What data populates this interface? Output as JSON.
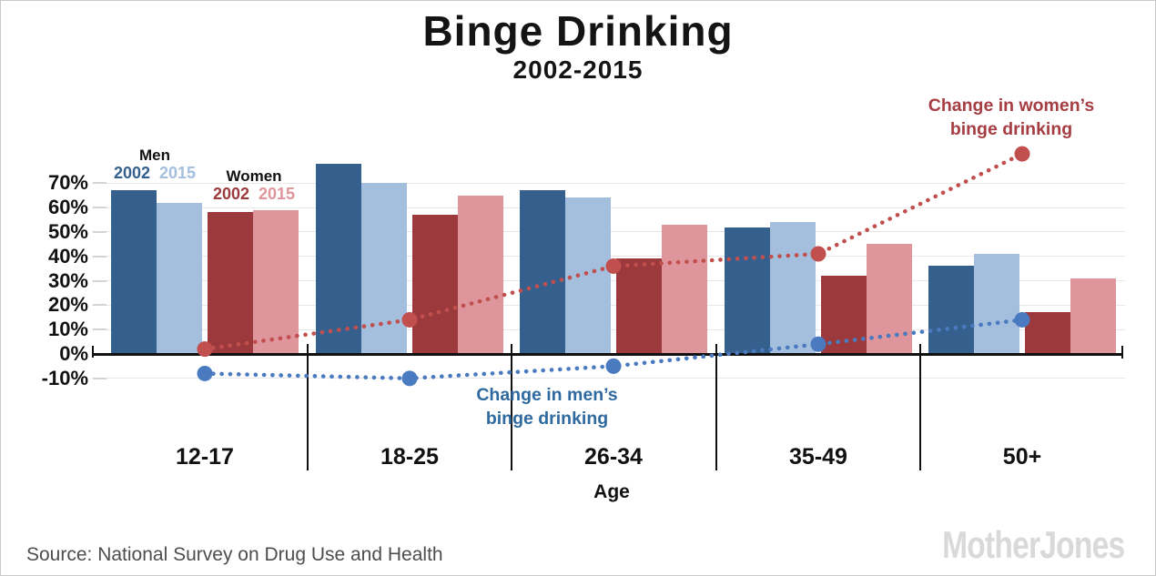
{
  "header": {
    "title": "Binge Drinking",
    "subtitle": "2002-2015"
  },
  "legend": {
    "men_label": "Men",
    "men_2002": "2002",
    "men_2015": "2015",
    "women_label": "Women",
    "women_2002": "2002",
    "women_2015": "2015"
  },
  "annotations": {
    "women_line1": "Change in women’s",
    "women_line2": "binge drinking",
    "men_line1": "Change in men’s",
    "men_line2": "binge drinking"
  },
  "axis": {
    "x_label": "Age"
  },
  "footer": {
    "source": "Source: National Survey on Drug Use and Health",
    "logo": "MotherJones"
  },
  "colors": {
    "men_2002_bar": "#35608d",
    "men_2015_bar": "#a3bfdd",
    "women_2002_bar": "#9c393c",
    "women_2015_bar": "#de959b",
    "men_change_line": "#4a7abf",
    "women_change_line": "#c14f4e",
    "men_annotation_text": "#2e699f",
    "women_annotation_text": "#a63d42",
    "axis_line": "#111111",
    "gridline": "#e7e7e7",
    "tick_dash": "#d4d4d4",
    "source_text": "#4d4d4d",
    "logo_text": "#d9d9d9"
  },
  "chart_data": {
    "type": "bar",
    "title": "Binge Drinking",
    "subtitle": "2002-2015",
    "xlabel": "Age",
    "ylabel": "",
    "categories": [
      "12-17",
      "18-25",
      "26-34",
      "35-49",
      "50+"
    ],
    "series": [
      {
        "name": "Men 2002",
        "values": [
          67,
          78,
          67,
          52,
          36
        ],
        "color": "#35608d"
      },
      {
        "name": "Men 2015",
        "values": [
          62,
          70,
          64,
          54,
          41
        ],
        "color": "#a3bfdd"
      },
      {
        "name": "Women 2002",
        "values": [
          58,
          57,
          39,
          32,
          17
        ],
        "color": "#9c393c"
      },
      {
        "name": "Women 2015",
        "values": [
          59,
          65,
          53,
          45,
          31
        ],
        "color": "#de959b"
      }
    ],
    "line_series": [
      {
        "name": "Change in men's binge drinking",
        "values": [
          -8,
          -10,
          -5,
          4,
          14
        ],
        "color": "#4a7abf"
      },
      {
        "name": "Change in women's binge drinking",
        "values": [
          2,
          14,
          36,
          41,
          82
        ],
        "color": "#c14f4e"
      }
    ],
    "y_axis": {
      "tick_values": [
        70,
        60,
        50,
        40,
        30,
        20,
        10,
        0,
        -10
      ],
      "tick_labels": [
        "70%",
        "60%",
        "50%",
        "40%",
        "30%",
        "20%",
        "10%",
        "0%",
        "-10%"
      ]
    },
    "ylim": [
      -10,
      80
    ],
    "grid": true,
    "legend_position": "top-left"
  }
}
